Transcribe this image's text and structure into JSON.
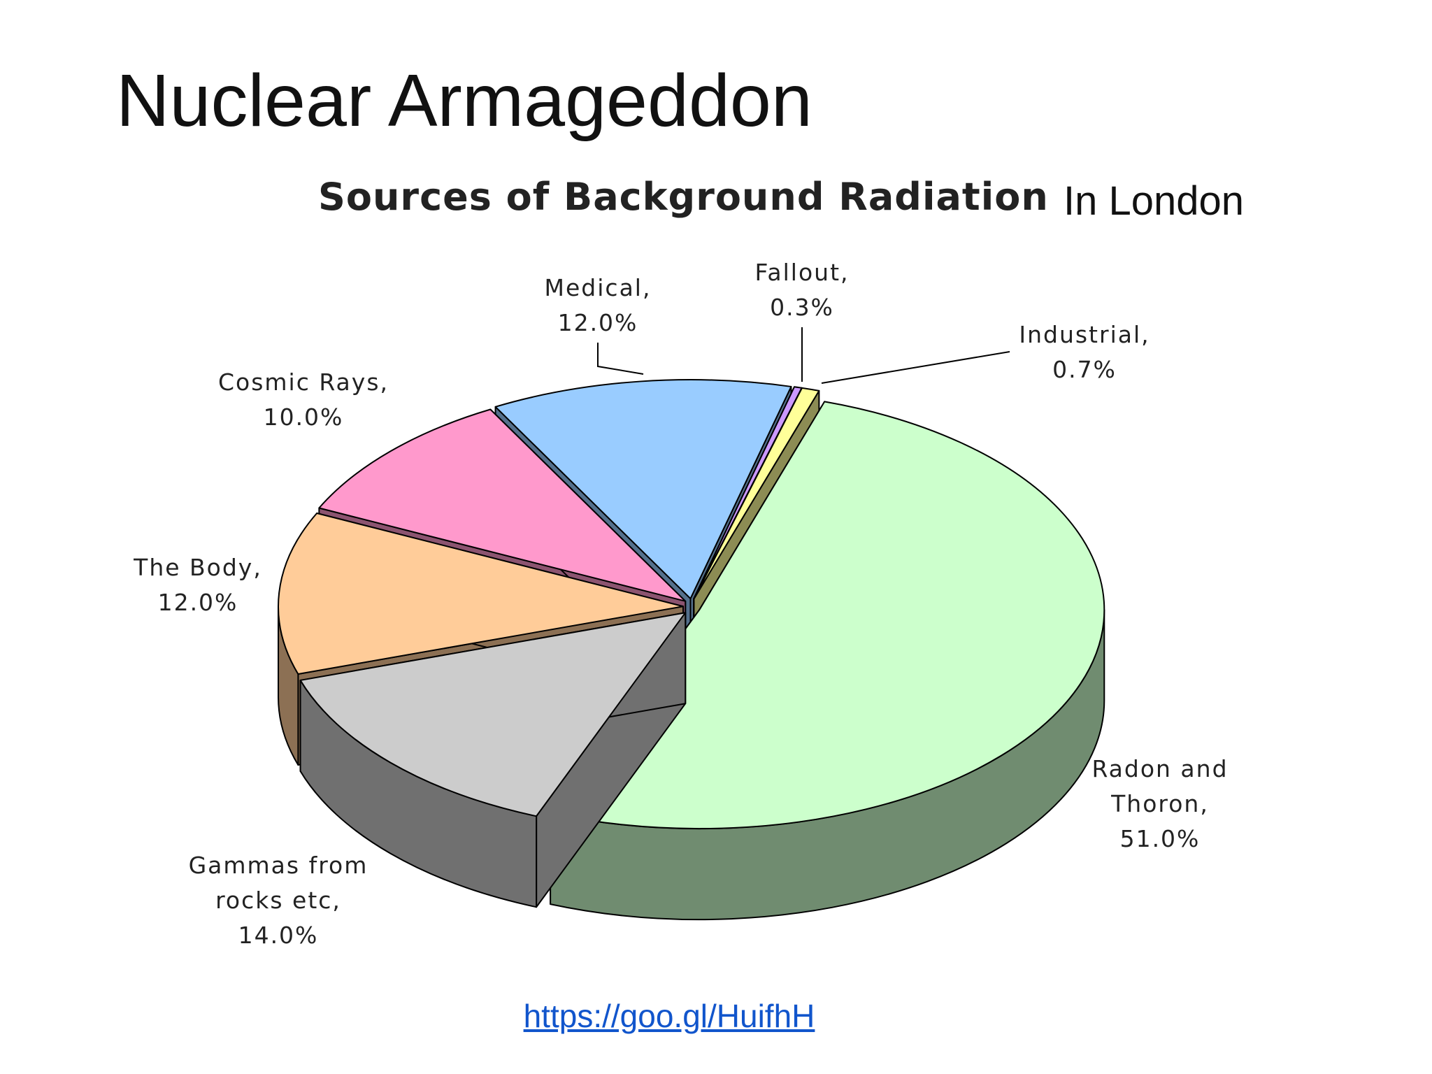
{
  "slide_title": "Nuclear Armageddon",
  "link": "https://goo.gl/HuifhH",
  "chart_data": {
    "type": "pie3d",
    "title": "Sources of Background Radiation",
    "subtitle": "In London",
    "categories": [
      "Radon and Thoron,",
      "Gammas from rocks etc,",
      "The Body,",
      "Cosmic Rays,",
      "Medical,",
      "Fallout,",
      "Industrial,"
    ],
    "values": [
      51,
      14,
      12,
      10,
      12,
      0.3,
      0.7
    ],
    "value_labels": [
      "51.0%",
      "14.0%",
      "12.0%",
      "10.0%",
      "12.0%",
      "0.3%",
      "0.7%"
    ],
    "colors": [
      "#ccffcc",
      "#cccccc",
      "#ffcc99",
      "#ff99cc",
      "#99ccff",
      "#cc99ff",
      "#ffff99"
    ]
  }
}
